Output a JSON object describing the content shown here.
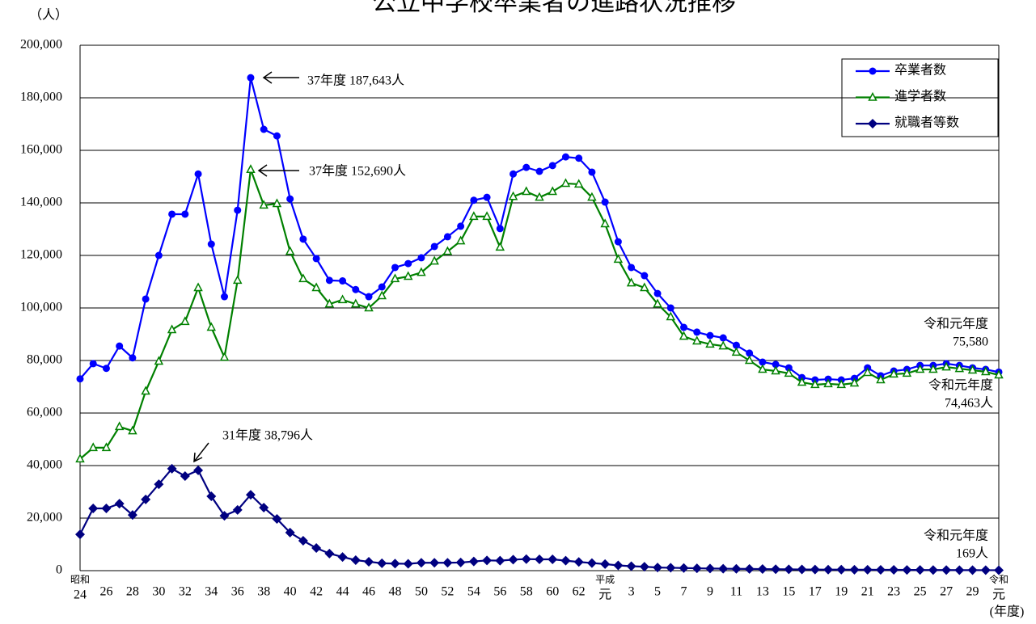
{
  "chart_data": {
    "type": "line",
    "title": "公立中学校卒業者の進路状況推移",
    "y_unit": "（人）",
    "x_unit": "(年度)",
    "categories": [
      "24",
      null,
      "26",
      null,
      "28",
      null,
      "30",
      null,
      "32",
      null,
      "34",
      null,
      "36",
      null,
      "38",
      null,
      "40",
      null,
      "42",
      null,
      "44",
      null,
      "46",
      null,
      "48",
      null,
      "50",
      null,
      "52",
      null,
      "54",
      null,
      "56",
      null,
      "58",
      null,
      "60",
      null,
      "62",
      null,
      "元",
      null,
      "3",
      null,
      "5",
      null,
      "7",
      null,
      "9",
      null,
      "11",
      null,
      "13",
      null,
      "15",
      null,
      "17",
      null,
      "19",
      null,
      "21",
      null,
      "23",
      null,
      "25",
      null,
      "27",
      null,
      "29",
      null,
      "元"
    ],
    "era_labels": [
      "昭和",
      null,
      null,
      null,
      null,
      null,
      null,
      null,
      null,
      null,
      null,
      null,
      null,
      null,
      null,
      null,
      null,
      null,
      null,
      null,
      null,
      null,
      null,
      null,
      null,
      null,
      null,
      null,
      null,
      null,
      null,
      null,
      null,
      null,
      null,
      null,
      null,
      null,
      null,
      null,
      "平成",
      null,
      null,
      null,
      null,
      null,
      null,
      null,
      null,
      null,
      null,
      null,
      null,
      null,
      null,
      null,
      null,
      null,
      null,
      null,
      null,
      null,
      null,
      null,
      null,
      null,
      null,
      null,
      null,
      null,
      "令和"
    ],
    "ylim": [
      0,
      200000
    ],
    "yticks": [
      0,
      {
        "value": 20000,
        "label": "20,000"
      },
      {
        "value": 40000,
        "label": "40,000"
      },
      {
        "value": 60000,
        "label": "60,000"
      },
      {
        "value": 80000,
        "label": "80,000"
      },
      {
        "value": 100000,
        "label": "100,000"
      },
      {
        "value": 120000,
        "label": "120,000"
      },
      {
        "value": 140000,
        "label": "140,000"
      },
      {
        "value": 160000,
        "label": "160,000"
      },
      {
        "value": 180000,
        "label": "180,000"
      },
      {
        "value": 200000,
        "label": "200,000"
      }
    ],
    "grid": true,
    "legend": "upper right",
    "series": [
      {
        "name": "卒業者数",
        "color": "#0000ff",
        "marker": "circle",
        "values": [
          73000,
          78800,
          77000,
          85500,
          81000,
          103400,
          120000,
          135700,
          135700,
          151000,
          124300,
          104300,
          137200,
          187643,
          168000,
          165500,
          141500,
          126200,
          118800,
          110500,
          110300,
          107000,
          104300,
          108000,
          115400,
          116900,
          119100,
          123400,
          127100,
          131100,
          141000,
          142100,
          130200,
          151000,
          153500,
          152000,
          154200,
          157500,
          157000,
          151700,
          140300,
          125200,
          115400,
          112300,
          105500,
          100000,
          92600,
          90800,
          89500,
          88600,
          85800,
          82800,
          79400,
          78500,
          77200,
          73500,
          72600,
          72900,
          72600,
          73200,
          77200,
          74200,
          76000,
          76600,
          78100,
          78100,
          78800,
          78100,
          77200,
          76600,
          75580
        ]
      },
      {
        "name": "進学者数",
        "color": "#008000",
        "marker": "triangle",
        "values": [
          42500,
          46800,
          46800,
          54800,
          53200,
          68300,
          79700,
          91700,
          94800,
          107700,
          92600,
          81200,
          110500,
          152690,
          139100,
          139700,
          121500,
          111100,
          107700,
          101500,
          103100,
          101500,
          100000,
          104600,
          111100,
          112000,
          113500,
          117800,
          121500,
          125500,
          134800,
          134800,
          123100,
          142400,
          144300,
          142100,
          144300,
          147400,
          147100,
          142100,
          132000,
          118500,
          109500,
          107700,
          101500,
          96600,
          89200,
          87400,
          86200,
          85500,
          83100,
          80000,
          76600,
          76000,
          75100,
          71700,
          70800,
          71100,
          70800,
          71400,
          75400,
          72600,
          74800,
          75100,
          76600,
          76600,
          77500,
          76900,
          76300,
          75700,
          74463
        ]
      },
      {
        "name": "就職者等数",
        "color": "#000080",
        "marker": "diamond",
        "values": [
          13800,
          23700,
          23700,
          25500,
          21200,
          27100,
          32900,
          38796,
          36000,
          38200,
          28300,
          20900,
          23100,
          28900,
          24000,
          19700,
          14500,
          11400,
          8600,
          6500,
          5200,
          4000,
          3400,
          2800,
          2700,
          2600,
          3000,
          3000,
          3000,
          3100,
          3500,
          3900,
          3800,
          4200,
          4400,
          4300,
          4300,
          3800,
          3300,
          2900,
          2500,
          2000,
          1700,
          1500,
          1200,
          1100,
          1000,
          900,
          800,
          750,
          700,
          650,
          600,
          550,
          500,
          450,
          420,
          400,
          380,
          360,
          340,
          320,
          300,
          280,
          260,
          240,
          220,
          200,
          190,
          180,
          169
        ]
      }
    ],
    "annotations": [
      {
        "lines": [
          "37年度  187,643人"
        ]
      },
      {
        "lines": [
          "37年度  152,690人"
        ]
      },
      {
        "lines": [
          "31年度  38,796人"
        ]
      },
      {
        "lines": [
          "令和元年度",
          "75,580"
        ]
      },
      {
        "lines": [
          "令和元年度",
          "74,463人"
        ]
      },
      {
        "lines": [
          "令和元年度",
          "169人"
        ]
      }
    ]
  }
}
